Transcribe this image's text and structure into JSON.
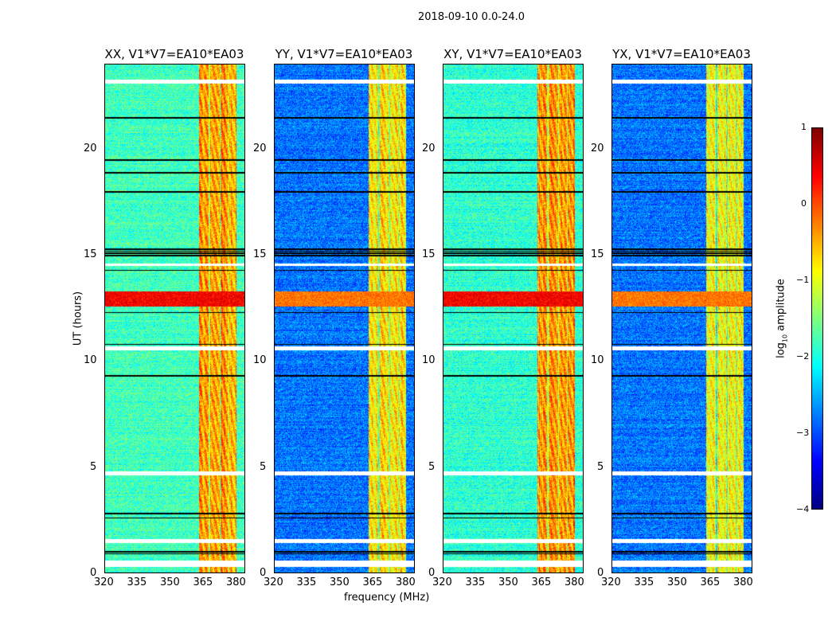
{
  "figure_title": "2018-09-10 0.0-24.0",
  "chart_data": {
    "type": "heatmap",
    "xlabel": "frequency (MHz)",
    "ylabel": "UT (hours)",
    "xlim": [
      320,
      384
    ],
    "ylim": [
      0,
      24
    ],
    "xticks": [
      "320",
      "335",
      "350",
      "365",
      "380"
    ],
    "xtick_values": [
      320,
      335,
      350,
      365,
      380
    ],
    "yticks": [
      "0",
      "5",
      "10",
      "15",
      "20"
    ],
    "ytick_values": [
      0,
      5,
      10,
      15,
      20
    ],
    "colorbar": {
      "label": "log10 amplitude",
      "label_main": "log",
      "label_sub": "10",
      "label_rest": " amplitude",
      "range": [
        -4,
        1
      ],
      "ticks": [
        "1",
        "0",
        "−1",
        "−2",
        "−3",
        "−4"
      ],
      "tick_values": [
        1,
        0,
        -1,
        -2,
        -3,
        -4
      ],
      "colormap": "jet"
    },
    "panels": [
      {
        "title": "XX, V1*V7=EA10*EA03",
        "background_log_amp": -1.8,
        "band_log_amp": -0.4
      },
      {
        "title": "YY, V1*V7=EA10*EA03",
        "background_log_amp": -2.8,
        "band_log_amp": -0.8
      },
      {
        "title": "XY, V1*V7=EA10*EA03",
        "background_log_amp": -1.9,
        "band_log_amp": -0.4
      },
      {
        "title": "YX, V1*V7=EA10*EA03",
        "background_log_amp": -2.8,
        "band_log_amp": -0.9
      }
    ],
    "band_MHz": [
      363,
      380
    ],
    "rfi_hours": [
      12.6,
      13.3
    ],
    "rfi_log_amp": 0.6,
    "flagged_hours": [
      [
        0.3,
        0.6
      ],
      [
        1.4,
        1.6
      ],
      [
        4.6,
        4.8
      ],
      [
        10.5,
        10.7
      ],
      [
        14.5,
        14.6
      ],
      [
        23.1,
        23.3
      ]
    ],
    "dropout_hours": [
      0.9,
      1.0,
      2.6,
      2.8,
      9.3,
      10.8,
      12.3,
      14.3,
      15.0,
      15.1,
      15.2,
      15.3,
      18.0,
      18.9,
      19.5,
      21.5
    ]
  }
}
